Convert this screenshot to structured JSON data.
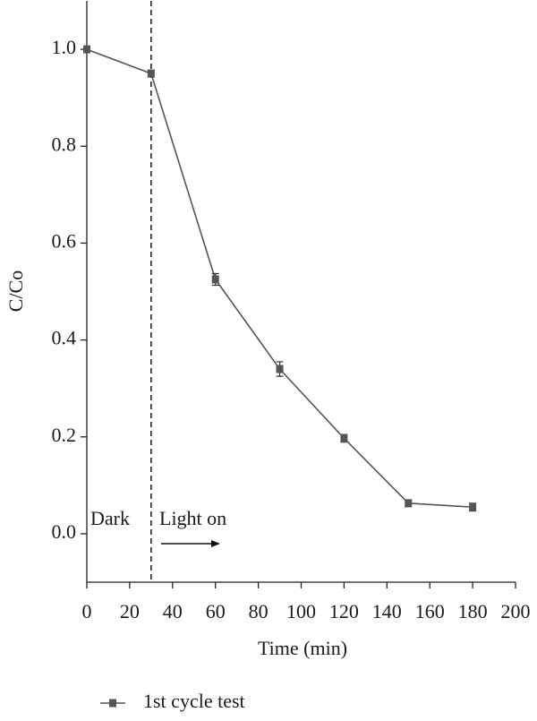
{
  "chart_data": {
    "type": "line",
    "x_label": "Time (min)",
    "y_label": "C/Co",
    "x": [
      0,
      30,
      60,
      90,
      120,
      150,
      180
    ],
    "series": [
      {
        "name": "1st cycle test",
        "color": "#555555",
        "values": [
          1.0,
          0.95,
          0.525,
          0.34,
          0.197,
          0.063,
          0.055
        ],
        "errors": [
          0.005,
          0.007,
          0.012,
          0.015,
          0.008,
          0.007,
          0.008
        ]
      }
    ],
    "xlim": [
      0,
      200
    ],
    "xticks": [
      0,
      20,
      40,
      60,
      80,
      100,
      120,
      140,
      160,
      180,
      200
    ],
    "ylim": [
      -0.1,
      1.1
    ],
    "yticks": [
      {
        "value": 0,
        "label": "0.0"
      },
      0.2,
      0.4,
      0.6,
      0.8,
      {
        "value": 1,
        "label": "1.0"
      }
    ],
    "vline": 30,
    "annotations": [
      "Dark",
      "Light on"
    ]
  }
}
